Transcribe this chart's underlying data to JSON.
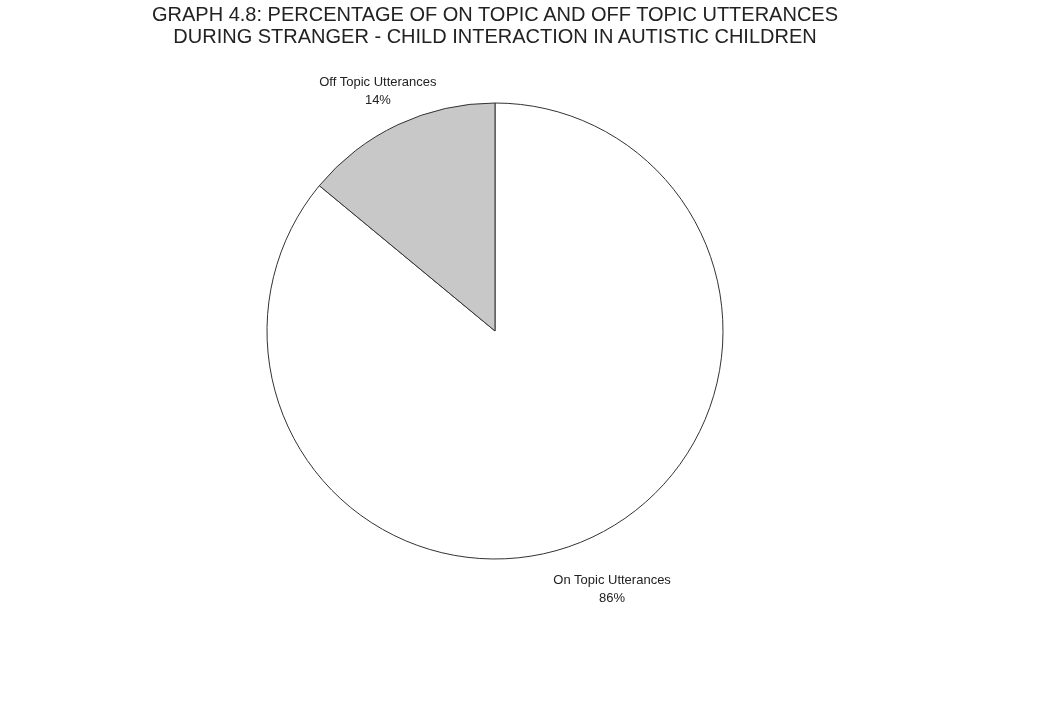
{
  "chart_data": {
    "type": "pie",
    "title": "GRAPH 4.8: PERCENTAGE OF ON TOPIC AND OFF TOPIC UTTERANCES\nDURING STRANGER - CHILD INTERACTION IN AUTISTIC CHILDREN",
    "categories": [
      "On Topic Utterances",
      "Off Topic Utterances"
    ],
    "values": [
      86,
      14
    ],
    "colors": [
      "#ffffff",
      "#c8c8c8"
    ],
    "value_labels": [
      "86%",
      "14%"
    ],
    "legend": false
  }
}
